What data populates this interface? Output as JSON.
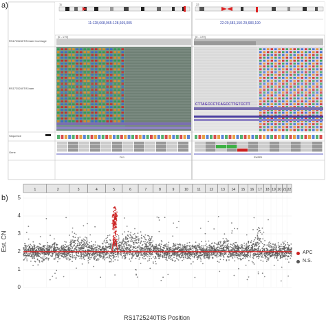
{
  "panel_a": {
    "label": "a)",
    "left_chr_tab": "11",
    "right_chr_tab": "22",
    "left_locus": "11:128,668,965-128,669,005",
    "right_locus": "22:29,683,150-29,683,190",
    "tracks": {
      "coverage": "RS1725240TIS.bam Coverage",
      "bam": "RS1725240TIS.bam",
      "sequence": "Sequence",
      "gene": "Gene"
    },
    "left_range_label": "[0 - 179]",
    "right_range_label": "[0 - 179]",
    "left_gene": "FLI1",
    "right_gene": "EWSR1",
    "right_insert_seq": "CTTAGCCCTCAGCCTTGTCCTT"
  },
  "panel_b": {
    "label": "b)",
    "colors": {
      "apc": "#cc2222",
      "ns": "#555555",
      "fit": "#dd2222"
    }
  },
  "chart_data": {
    "type": "scatter",
    "title": "",
    "xlabel": "RS1725240TIS Position",
    "ylabel": "Est. CN",
    "ylim": [
      0,
      5
    ],
    "yticks": [
      0,
      1,
      2,
      3,
      4,
      5
    ],
    "chromosomes": [
      "1",
      "2",
      "3",
      "4",
      "5",
      "6",
      "7",
      "8",
      "9",
      "10",
      "11",
      "12",
      "13",
      "14",
      "15",
      "16",
      "17",
      "18",
      "19",
      "20",
      "21",
      "22"
    ],
    "legend": {
      "placement": "right",
      "entries": [
        "APC",
        "N.S."
      ]
    },
    "series": [
      {
        "name": "APC",
        "approx_center_cn": 3.8,
        "range": [
          2.3,
          4.5
        ],
        "chromosome": "5"
      },
      {
        "name": "N.S.",
        "approx_center_cn": 2.0,
        "range": [
          0.3,
          4.0
        ]
      }
    ],
    "fit_level": 2.0
  }
}
